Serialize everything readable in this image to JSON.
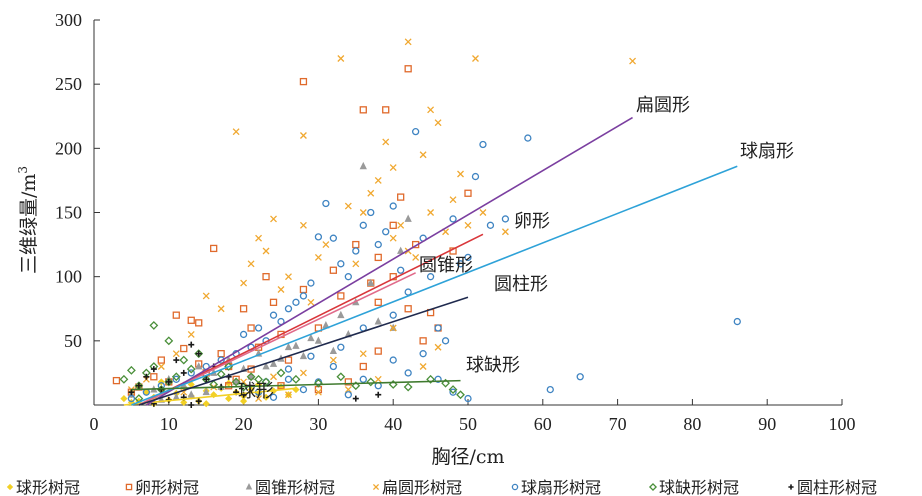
{
  "chart_data": {
    "type": "scatter",
    "xlabel": "胸径/cm",
    "ylabel_main": "三维绿量/m",
    "ylabel_sup": "3",
    "xlim": [
      0,
      100
    ],
    "ylim": [
      0,
      300
    ],
    "xticks": [
      0,
      10,
      20,
      30,
      40,
      50,
      60,
      70,
      80,
      90,
      100
    ],
    "yticks": [
      50,
      100,
      150,
      200,
      250,
      300
    ],
    "legend_position": "bottom",
    "series": [
      {
        "name": "球形树冠",
        "label": "球形",
        "marker": "diamond",
        "color": "#f2d026",
        "fit": {
          "x0": 4,
          "x1": 27,
          "y0": 0,
          "y1": 13
        },
        "points": [
          [
            4,
            5
          ],
          [
            5,
            8
          ],
          [
            6,
            3
          ],
          [
            7,
            10
          ],
          [
            8,
            6
          ],
          [
            9,
            12
          ],
          [
            10,
            4
          ],
          [
            11,
            9
          ],
          [
            12,
            14
          ],
          [
            13,
            7
          ],
          [
            14,
            3
          ],
          [
            15,
            11
          ],
          [
            16,
            8
          ],
          [
            17,
            13
          ],
          [
            18,
            5
          ],
          [
            19,
            10
          ],
          [
            20,
            7
          ],
          [
            21,
            12
          ],
          [
            22,
            9
          ],
          [
            23,
            6
          ],
          [
            24,
            11
          ],
          [
            25,
            14
          ],
          [
            26,
            8
          ],
          [
            27,
            12
          ],
          [
            6,
            15
          ],
          [
            9,
            18
          ],
          [
            13,
            16
          ],
          [
            18,
            17
          ],
          [
            22,
            16
          ],
          [
            5,
            2
          ],
          [
            8,
            1
          ],
          [
            12,
            2
          ],
          [
            15,
            1
          ],
          [
            20,
            3
          ]
        ]
      },
      {
        "name": "卵形树冠",
        "label": "卵形",
        "marker": "square",
        "color": "#e06a2c",
        "fit": {
          "x0": 6,
          "x1": 52,
          "y0": 0,
          "y1": 133
        },
        "points": [
          [
            3,
            19
          ],
          [
            5,
            10
          ],
          [
            6,
            14
          ],
          [
            8,
            22
          ],
          [
            9,
            35
          ],
          [
            10,
            18
          ],
          [
            11,
            70
          ],
          [
            12,
            44
          ],
          [
            13,
            66
          ],
          [
            14,
            64
          ],
          [
            15,
            25
          ],
          [
            16,
            122
          ],
          [
            17,
            40
          ],
          [
            18,
            30
          ],
          [
            19,
            20
          ],
          [
            20,
            75
          ],
          [
            21,
            60
          ],
          [
            22,
            45
          ],
          [
            23,
            100
          ],
          [
            24,
            80
          ],
          [
            25,
            55
          ],
          [
            26,
            35
          ],
          [
            28,
            252
          ],
          [
            28,
            90
          ],
          [
            30,
            60
          ],
          [
            32,
            105
          ],
          [
            33,
            85
          ],
          [
            35,
            125
          ],
          [
            36,
            230
          ],
          [
            37,
            95
          ],
          [
            38,
            115
          ],
          [
            38,
            80
          ],
          [
            39,
            230
          ],
          [
            40,
            140
          ],
          [
            40,
            100
          ],
          [
            41,
            162
          ],
          [
            42,
            262
          ],
          [
            42,
            75
          ],
          [
            43,
            125
          ],
          [
            45,
            72
          ],
          [
            46,
            60
          ],
          [
            48,
            120
          ],
          [
            50,
            165
          ],
          [
            38,
            42
          ],
          [
            36,
            30
          ],
          [
            44,
            50
          ],
          [
            34,
            18
          ],
          [
            30,
            12
          ],
          [
            25,
            15
          ],
          [
            21,
            28
          ],
          [
            18,
            15
          ],
          [
            14,
            32
          ]
        ]
      },
      {
        "name": "圆锥形树冠",
        "label": "圆锥形",
        "marker": "triangle",
        "color": "#9a9a9a",
        "fit": {
          "x0": 6,
          "x1": 43,
          "y0": 0,
          "y1": 103
        },
        "points": [
          [
            5,
            8
          ],
          [
            8,
            12
          ],
          [
            10,
            20
          ],
          [
            12,
            15
          ],
          [
            14,
            30
          ],
          [
            16,
            25
          ],
          [
            18,
            35
          ],
          [
            20,
            28
          ],
          [
            22,
            40
          ],
          [
            24,
            32
          ],
          [
            26,
            45
          ],
          [
            28,
            38
          ],
          [
            30,
            50
          ],
          [
            32,
            42
          ],
          [
            34,
            55
          ],
          [
            36,
            186
          ],
          [
            38,
            65
          ],
          [
            40,
            60
          ],
          [
            42,
            145
          ],
          [
            41,
            120
          ],
          [
            37,
            95
          ],
          [
            35,
            80
          ],
          [
            33,
            70
          ],
          [
            31,
            62
          ],
          [
            29,
            52
          ],
          [
            27,
            46
          ],
          [
            25,
            36
          ],
          [
            23,
            30
          ],
          [
            21,
            22
          ],
          [
            19,
            18
          ],
          [
            17,
            14
          ],
          [
            15,
            10
          ],
          [
            13,
            8
          ],
          [
            11,
            6
          ],
          [
            9,
            4
          ]
        ]
      },
      {
        "name": "扁圆形树冠",
        "label": "扁圆形",
        "marker": "x",
        "color": "#f0a830",
        "fit": {
          "x0": 7,
          "x1": 72,
          "y0": 0,
          "y1": 224
        },
        "points": [
          [
            5,
            12
          ],
          [
            7,
            20
          ],
          [
            9,
            30
          ],
          [
            11,
            40
          ],
          [
            13,
            55
          ],
          [
            15,
            85
          ],
          [
            17,
            75
          ],
          [
            19,
            213
          ],
          [
            20,
            95
          ],
          [
            21,
            110
          ],
          [
            22,
            130
          ],
          [
            23,
            120
          ],
          [
            24,
            145
          ],
          [
            25,
            90
          ],
          [
            26,
            100
          ],
          [
            28,
            210
          ],
          [
            28,
            140
          ],
          [
            29,
            80
          ],
          [
            30,
            115
          ],
          [
            31,
            125
          ],
          [
            33,
            270
          ],
          [
            34,
            155
          ],
          [
            35,
            110
          ],
          [
            36,
            150
          ],
          [
            37,
            165
          ],
          [
            38,
            175
          ],
          [
            39,
            205
          ],
          [
            40,
            185
          ],
          [
            40,
            130
          ],
          [
            41,
            140
          ],
          [
            42,
            283
          ],
          [
            42,
            120
          ],
          [
            43,
            115
          ],
          [
            44,
            195
          ],
          [
            45,
            230
          ],
          [
            45,
            150
          ],
          [
            46,
            220
          ],
          [
            47,
            135
          ],
          [
            48,
            160
          ],
          [
            49,
            180
          ],
          [
            50,
            140
          ],
          [
            51,
            270
          ],
          [
            52,
            150
          ],
          [
            55,
            135
          ],
          [
            72,
            268
          ],
          [
            40,
            60
          ],
          [
            36,
            40
          ],
          [
            32,
            35
          ],
          [
            28,
            25
          ],
          [
            24,
            22
          ],
          [
            20,
            18
          ],
          [
            16,
            14
          ],
          [
            12,
            10
          ],
          [
            46,
            45
          ],
          [
            44,
            30
          ],
          [
            38,
            20
          ],
          [
            34,
            12
          ],
          [
            30,
            10
          ],
          [
            26,
            8
          ],
          [
            22,
            5
          ]
        ]
      },
      {
        "name": "球扇形树冠",
        "label": "球扇形",
        "marker": "circle",
        "color": "#3f84c2",
        "fit": {
          "x0": 5,
          "x1": 86,
          "y0": 0,
          "y1": 186
        },
        "points": [
          [
            5,
            5
          ],
          [
            7,
            10
          ],
          [
            9,
            15
          ],
          [
            11,
            20
          ],
          [
            13,
            25
          ],
          [
            15,
            30
          ],
          [
            17,
            35
          ],
          [
            19,
            40
          ],
          [
            20,
            55
          ],
          [
            21,
            45
          ],
          [
            22,
            60
          ],
          [
            23,
            50
          ],
          [
            24,
            70
          ],
          [
            25,
            65
          ],
          [
            26,
            75
          ],
          [
            27,
            80
          ],
          [
            28,
            85
          ],
          [
            29,
            95
          ],
          [
            30,
            131
          ],
          [
            31,
            157
          ],
          [
            32,
            130
          ],
          [
            33,
            110
          ],
          [
            34,
            100
          ],
          [
            35,
            120
          ],
          [
            36,
            140
          ],
          [
            37,
            150
          ],
          [
            38,
            125
          ],
          [
            39,
            135
          ],
          [
            40,
            155
          ],
          [
            41,
            105
          ],
          [
            42,
            88
          ],
          [
            43,
            213
          ],
          [
            44,
            130
          ],
          [
            45,
            100
          ],
          [
            46,
            60
          ],
          [
            47,
            50
          ],
          [
            48,
            145
          ],
          [
            49,
            110
          ],
          [
            50,
            115
          ],
          [
            51,
            178
          ],
          [
            52,
            203
          ],
          [
            53,
            140
          ],
          [
            55,
            145
          ],
          [
            58,
            208
          ],
          [
            61,
            12
          ],
          [
            65,
            22
          ],
          [
            86,
            65
          ],
          [
            44,
            40
          ],
          [
            42,
            25
          ],
          [
            40,
            35
          ],
          [
            38,
            15
          ],
          [
            36,
            20
          ],
          [
            34,
            8
          ],
          [
            32,
            30
          ],
          [
            30,
            18
          ],
          [
            28,
            12
          ],
          [
            26,
            20
          ],
          [
            24,
            6
          ],
          [
            22,
            10
          ],
          [
            40,
            70
          ],
          [
            36,
            60
          ],
          [
            33,
            45
          ],
          [
            29,
            38
          ],
          [
            26,
            28
          ],
          [
            23,
            18
          ],
          [
            46,
            20
          ],
          [
            48,
            10
          ],
          [
            50,
            5
          ]
        ]
      },
      {
        "name": "球缺形树冠",
        "label": "球缺形",
        "marker": "diamond-outline",
        "color": "#4a8f3a",
        "fit": {
          "x0": 5,
          "x1": 49,
          "y0": 12,
          "y1": 19
        },
        "points": [
          [
            4,
            20
          ],
          [
            5,
            27
          ],
          [
            6,
            15
          ],
          [
            7,
            25
          ],
          [
            8,
            30
          ],
          [
            9,
            12
          ],
          [
            10,
            18
          ],
          [
            11,
            22
          ],
          [
            12,
            35
          ],
          [
            13,
            28
          ],
          [
            14,
            40
          ],
          [
            15,
            20
          ],
          [
            16,
            16
          ],
          [
            17,
            24
          ],
          [
            18,
            30
          ],
          [
            19,
            18
          ],
          [
            20,
            14
          ],
          [
            21,
            22
          ],
          [
            22,
            20
          ],
          [
            23,
            18
          ],
          [
            25,
            25
          ],
          [
            27,
            20
          ],
          [
            30,
            17
          ],
          [
            33,
            22
          ],
          [
            35,
            15
          ],
          [
            37,
            18
          ],
          [
            40,
            16
          ],
          [
            42,
            14
          ],
          [
            45,
            20
          ],
          [
            47,
            17
          ],
          [
            48,
            12
          ],
          [
            49,
            8
          ],
          [
            6,
            5
          ],
          [
            8,
            62
          ],
          [
            10,
            50
          ]
        ]
      },
      {
        "name": "圆柱形树冠",
        "label": "圆柱形",
        "marker": "plus",
        "color": "#1a1a1a",
        "fit": {
          "x0": 6,
          "x1": 50,
          "y0": 0,
          "y1": 84
        },
        "points": [
          [
            5,
            10
          ],
          [
            6,
            15
          ],
          [
            7,
            22
          ],
          [
            8,
            28
          ],
          [
            9,
            12
          ],
          [
            10,
            18
          ],
          [
            11,
            35
          ],
          [
            12,
            25
          ],
          [
            13,
            47
          ],
          [
            14,
            40
          ],
          [
            15,
            20
          ],
          [
            16,
            30
          ],
          [
            17,
            14
          ],
          [
            18,
            22
          ],
          [
            19,
            10
          ],
          [
            20,
            8
          ],
          [
            12,
            6
          ],
          [
            10,
            4
          ],
          [
            14,
            3
          ],
          [
            35,
            5
          ],
          [
            38,
            8
          ],
          [
            8,
            1
          ],
          [
            13,
            0
          ]
        ]
      }
    ]
  }
}
